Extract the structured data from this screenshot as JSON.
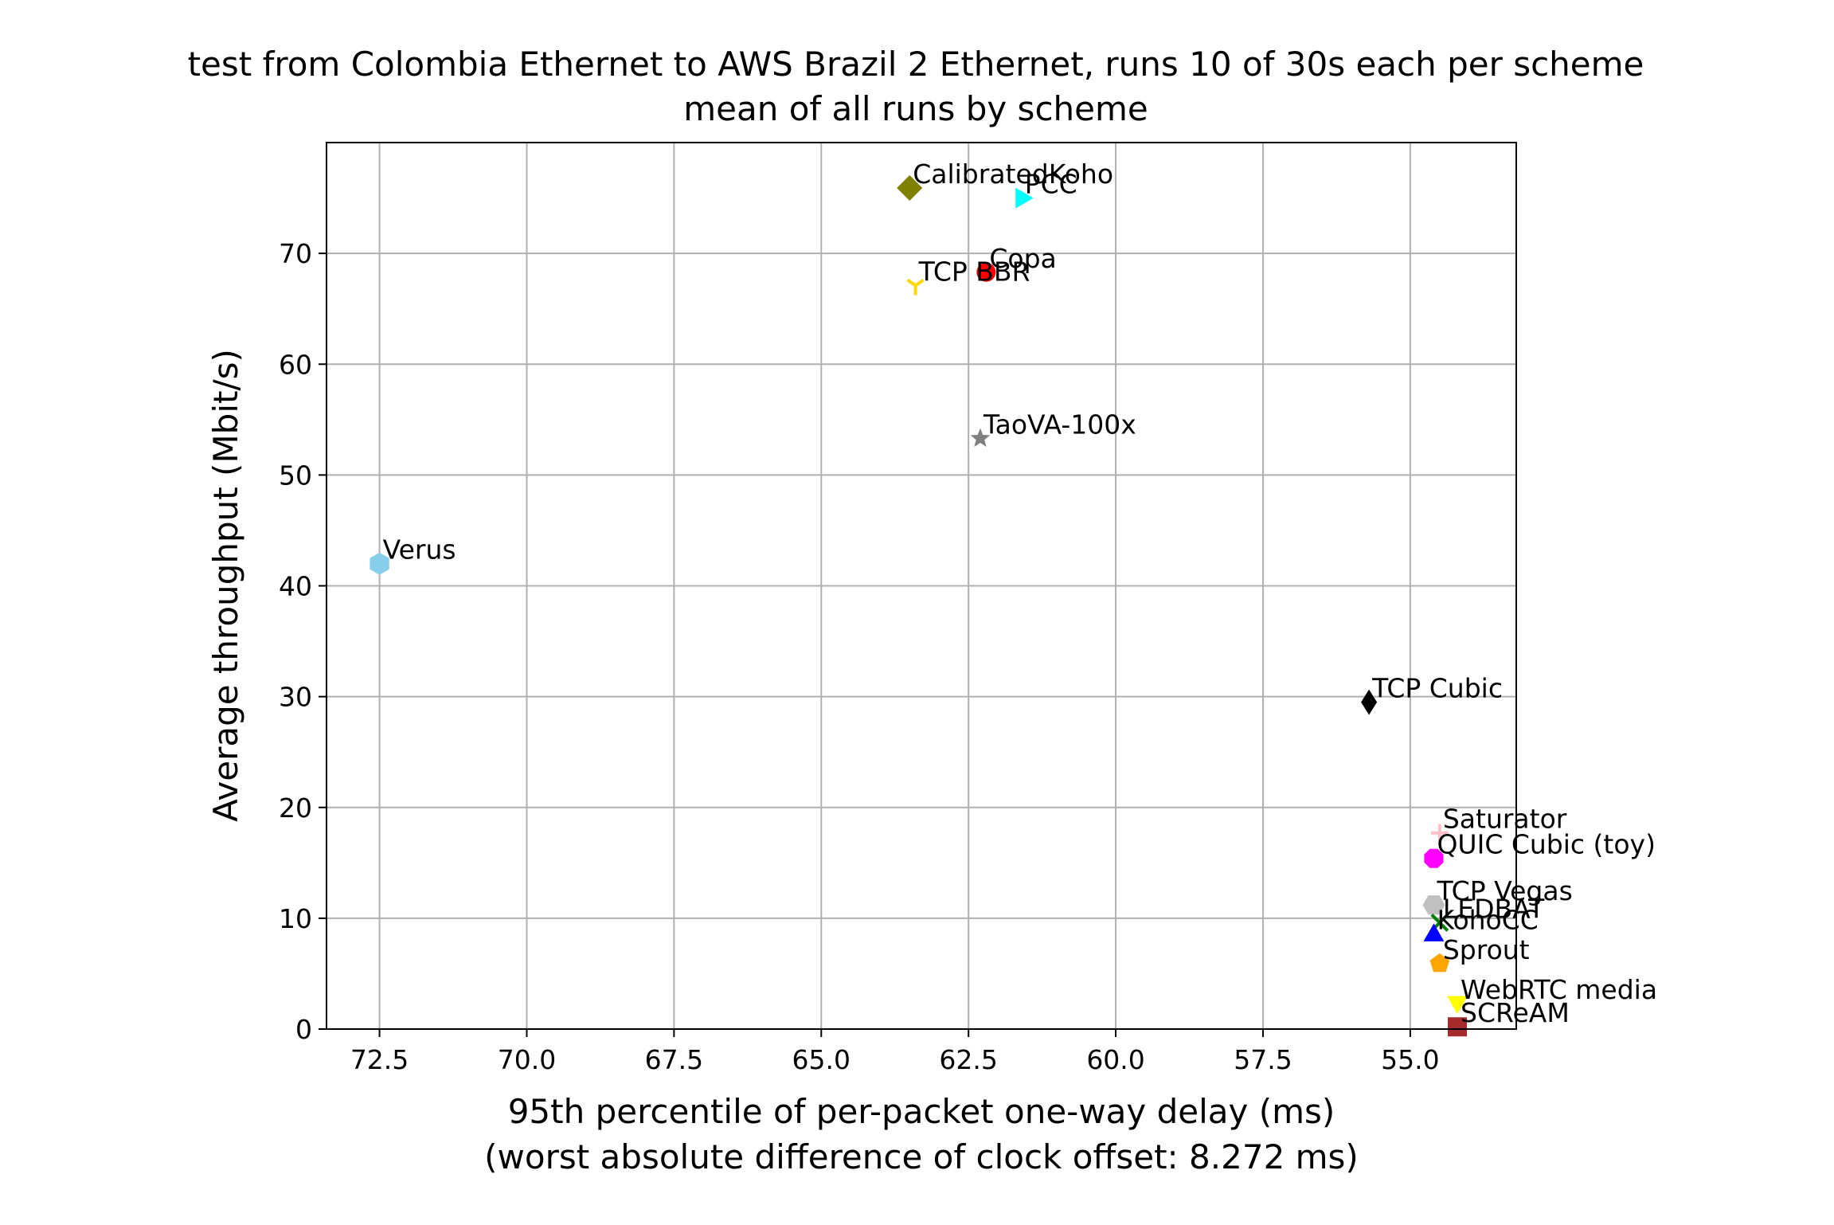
{
  "chart_data": {
    "type": "scatter",
    "title": "test from Colombia Ethernet to AWS Brazil 2 Ethernet, runs 10 of 30s each per scheme",
    "subtitle": "mean of all runs by scheme",
    "xlabel": "95th percentile of per-packet one-way delay (ms)",
    "xlabel2": "(worst absolute difference of clock offset: 8.272 ms)",
    "ylabel": "Average throughput (Mbit/s)",
    "xlim": [
      73.4,
      53.2
    ],
    "ylim": [
      0,
      80
    ],
    "x_inverted": true,
    "grid": true,
    "xticks": [
      72.5,
      70.0,
      67.5,
      65.0,
      62.5,
      60.0,
      57.5,
      55.0
    ],
    "xtick_labels": [
      "72.5",
      "70.0",
      "67.5",
      "65.0",
      "62.5",
      "60.0",
      "57.5",
      "55.0"
    ],
    "yticks": [
      0,
      10,
      20,
      30,
      40,
      50,
      60,
      70
    ],
    "ytick_labels": [
      "0",
      "10",
      "20",
      "30",
      "40",
      "50",
      "60",
      "70"
    ],
    "points": [
      {
        "label": "CalibratedKoho",
        "x": 63.5,
        "y": 75.9,
        "color": "#808000",
        "marker": "diamond"
      },
      {
        "label": "PCC",
        "x": 61.6,
        "y": 75.0,
        "color": "#00ffff",
        "marker": "triangle-right"
      },
      {
        "label": "Copa",
        "x": 62.2,
        "y": 68.3,
        "color": "#ff0000",
        "marker": "circle"
      },
      {
        "label": "TCP BBR",
        "x": 63.4,
        "y": 67.1,
        "color": "#ffd700",
        "marker": "tri-down"
      },
      {
        "label": "TaoVA-100x",
        "x": 62.3,
        "y": 53.3,
        "color": "#808080",
        "marker": "star"
      },
      {
        "label": "Verus",
        "x": 72.5,
        "y": 42.0,
        "color": "#87ceeb",
        "marker": "hexagon"
      },
      {
        "label": "TCP Cubic",
        "x": 55.7,
        "y": 29.5,
        "color": "#000000",
        "marker": "thin-diamond"
      },
      {
        "label": "Saturator",
        "x": 54.5,
        "y": 17.7,
        "color": "#ffc0cb",
        "marker": "plus"
      },
      {
        "label": "QUIC Cubic (toy)",
        "x": 54.6,
        "y": 15.4,
        "color": "#ff00ff",
        "marker": "octagon"
      },
      {
        "label": "TCP Vegas",
        "x": 54.6,
        "y": 11.2,
        "color": "#c0c0c0",
        "marker": "hexagon2"
      },
      {
        "label": "LEDBAT",
        "x": 54.5,
        "y": 9.6,
        "color": "#008000",
        "marker": "x"
      },
      {
        "label": "KohoCC",
        "x": 54.6,
        "y": 8.6,
        "color": "#0000ff",
        "marker": "triangle-up"
      },
      {
        "label": "Sprout",
        "x": 54.5,
        "y": 5.9,
        "color": "#ffa500",
        "marker": "pentagon"
      },
      {
        "label": "WebRTC media",
        "x": 54.2,
        "y": 2.3,
        "color": "#ffff00",
        "marker": "triangle-down"
      },
      {
        "label": "SCReAM",
        "x": 54.2,
        "y": 0.2,
        "color": "#a52a2a",
        "marker": "square"
      }
    ]
  }
}
